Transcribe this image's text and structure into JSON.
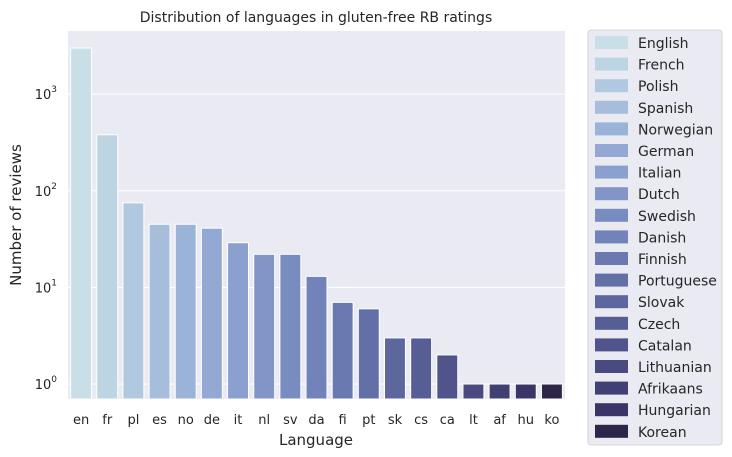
{
  "chart_data": {
    "type": "bar",
    "title": "Distribution of languages in gluten-free RB ratings",
    "xlabel": "Language",
    "ylabel": "Number of reviews",
    "yscale": "log",
    "ylim": [
      0.7,
      4500
    ],
    "yticks": [
      {
        "value": 1,
        "base": "10",
        "exp": "0"
      },
      {
        "value": 10,
        "base": "10",
        "exp": "1"
      },
      {
        "value": 100,
        "base": "10",
        "exp": "2"
      },
      {
        "value": 1000,
        "base": "10",
        "exp": "3"
      }
    ],
    "grid": true,
    "legend_position": "outside-right",
    "categories": [
      "en",
      "fr",
      "pl",
      "es",
      "no",
      "de",
      "it",
      "nl",
      "sv",
      "da",
      "fi",
      "pt",
      "sk",
      "cs",
      "ca",
      "lt",
      "af",
      "hu",
      "ko"
    ],
    "legend_labels": [
      "English",
      "French",
      "Polish",
      "Spanish",
      "Norwegian",
      "German",
      "Italian",
      "Dutch",
      "Swedish",
      "Danish",
      "Finnish",
      "Portuguese",
      "Slovak",
      "Czech",
      "Catalan",
      "Lithuanian",
      "Afrikaans",
      "Hungarian",
      "Korean"
    ],
    "values": [
      3000,
      380,
      75,
      45,
      45,
      41,
      29,
      22,
      22,
      13,
      7,
      6,
      3,
      3,
      2,
      1,
      1,
      1,
      1
    ],
    "colors": [
      "#c8dfe8",
      "#bdd4e3",
      "#b0c8e0",
      "#a6bddc",
      "#9cb3d8",
      "#93a9d4",
      "#8aa0ce",
      "#8196c7",
      "#798cbf",
      "#7183b8",
      "#6a79b0",
      "#6370a8",
      "#5d679e",
      "#565e95",
      "#50548a",
      "#494b80",
      "#423f74",
      "#3b3467",
      "#2d2649"
    ]
  }
}
